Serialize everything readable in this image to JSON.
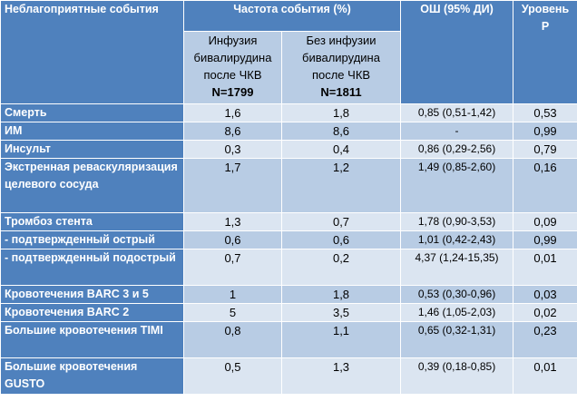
{
  "header": {
    "col_event": "Неблагоприятные события",
    "col_freq": "Частота события (%)",
    "col_or": "ОШ (95% ДИ)",
    "col_p": "Уровень Р",
    "sub_a_line1": "Инфузия",
    "sub_a_line2": "бивалирудина",
    "sub_a_line3": "после ЧКВ",
    "sub_a_n": "N=1799",
    "sub_b_line1": "Без инфузии",
    "sub_b_line2": "бивалирудина",
    "sub_b_line3": "после ЧКВ",
    "sub_b_n": "N=1811"
  },
  "rows": [
    {
      "event": "Смерть",
      "a": "1,6",
      "b": "1,8",
      "or": "0,85 (0,51-1,42)",
      "p": "0,53"
    },
    {
      "event": "ИМ",
      "a": "8,6",
      "b": "8,6",
      "or": "-",
      "p": "0,99"
    },
    {
      "event": "Инсульт",
      "a": "0,3",
      "b": "0,4",
      "or": "0,86 (0,29-2,56)",
      "p": "0,79"
    },
    {
      "event": "Экстренная реваскуляризация целевого сосуда",
      "a": "1,7",
      "b": "1,2",
      "or": "1,49 (0,85-2,60)",
      "p": "0,16"
    },
    {
      "event": "Тромбоз стента",
      "a": "1,3",
      "b": "0,7",
      "or": "1,78 (0,90-3,53)",
      "p": "0,09"
    },
    {
      "event": "- подтвержденный острый",
      "a": "0,6",
      "b": "0,6",
      "or": "1,01 (0,42-2,43)",
      "p": "0,99"
    },
    {
      "event": "- подтвержденный подострый",
      "a": "0,7",
      "b": "0,2",
      "or": "4,37 (1,24-15,35)",
      "p": "0,01"
    },
    {
      "event": "Кровотечения BARC 3 и 5",
      "a": "1",
      "b": "1,8",
      "or": "0,53 (0,30-0,96)",
      "p": "0,03"
    },
    {
      "event": "Кровотечения BARC 2",
      "a": "5",
      "b": "3,5",
      "or": "1,46 (1,05-2,03)",
      "p": "0,02"
    },
    {
      "event": "Большие кровотечения TIMI",
      "a": "0,8",
      "b": "1,1",
      "or": "0,65 (0,32-1,31)",
      "p": "0,23"
    },
    {
      "event": "Большие кровотечения GUSTO",
      "a": "0,5",
      "b": "1,3",
      "or": "0,39 (0,18-0,85)",
      "p": "0,01"
    }
  ]
}
